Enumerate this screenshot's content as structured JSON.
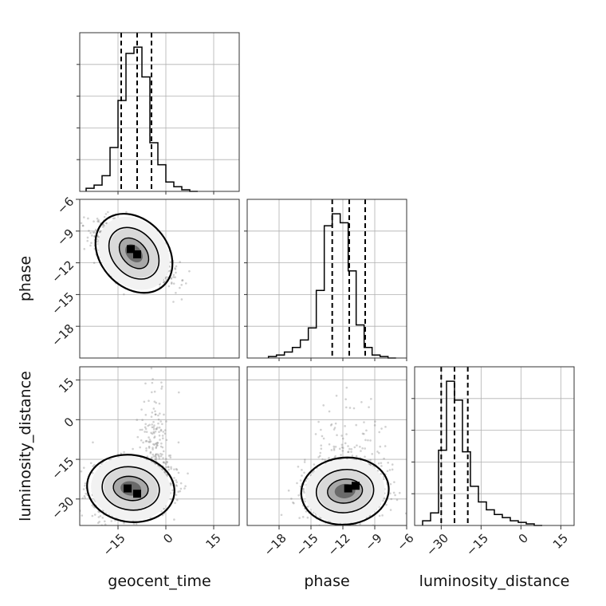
{
  "chart_data": {
    "type": "corner",
    "parameters": [
      "geocent_time",
      "phase",
      "luminosity_distance"
    ],
    "axis_labels": {
      "geocent_time": "geocent_time",
      "phase": "phase",
      "luminosity_distance": "luminosity_distance"
    },
    "ranges": {
      "geocent_time": [
        -27,
        23
      ],
      "phase": [
        -21,
        -6
      ],
      "luminosity_distance": [
        -40,
        20
      ]
    },
    "ticks": {
      "geocent_time": [
        "−15",
        "0",
        "15"
      ],
      "phase": [
        "−18",
        "−15",
        "−12",
        "−9",
        "−6"
      ],
      "luminosity_distance": [
        "−30",
        "−15",
        "0",
        "15"
      ]
    },
    "tick_values": {
      "geocent_time": [
        -15,
        0,
        15
      ],
      "phase": [
        -18,
        -15,
        -12,
        -9,
        -6
      ],
      "luminosity_distance": [
        -30,
        -15,
        0,
        15
      ]
    },
    "histograms": {
      "geocent_time": {
        "bin_edges": [
          -25,
          -22.5,
          -20,
          -17.5,
          -15,
          -12.5,
          -10,
          -7.5,
          -5,
          -2.5,
          0,
          2.5,
          5,
          7.5,
          10
        ],
        "counts": [
          2,
          4,
          10,
          28,
          58,
          88,
          92,
          73,
          31,
          17,
          6,
          3,
          1,
          0
        ]
      },
      "phase": {
        "bin_edges": [
          -19,
          -18.25,
          -17.5,
          -16.75,
          -16,
          -15.25,
          -14.5,
          -13.75,
          -13,
          -12.25,
          -11.5,
          -10.75,
          -10,
          -9.25,
          -8.5,
          -7.75,
          -7
        ],
        "counts": [
          1,
          2,
          4,
          7,
          12,
          20,
          45,
          88,
          96,
          90,
          58,
          22,
          7,
          2,
          1,
          0
        ]
      },
      "luminosity_distance": {
        "bin_edges": [
          -37,
          -34,
          -31,
          -28,
          -25,
          -22,
          -19,
          -16,
          -13,
          -10,
          -7,
          -4,
          -1,
          2,
          5,
          8
        ],
        "counts": [
          3,
          8,
          48,
          92,
          80,
          47,
          25,
          15,
          10,
          7,
          5,
          3,
          2,
          1,
          0
        ]
      }
    },
    "quantiles": {
      "geocent_time": [
        -14,
        -9,
        -4.5
      ],
      "phase": [
        -13,
        -11.4,
        -9.9
      ],
      "luminosity_distance": [
        -30,
        -25,
        -20
      ]
    },
    "pairs": [
      {
        "x": "geocent_time",
        "y": "phase",
        "center": [
          -10,
          -11.1
        ],
        "peak_bins": [
          [
            -11,
            -10.7
          ],
          [
            -9,
            -11.2
          ]
        ]
      },
      {
        "x": "geocent_time",
        "y": "luminosity_distance",
        "center": [
          -11,
          -26
        ],
        "peak_bins": [
          [
            -12,
            -26
          ],
          [
            -9,
            -28
          ]
        ]
      },
      {
        "x": "phase",
        "y": "luminosity_distance",
        "center": [
          -11.8,
          -27
        ],
        "peak_bins": [
          [
            -11.5,
            -26
          ],
          [
            -10.8,
            -25
          ]
        ]
      }
    ],
    "grid": true,
    "colors": {
      "hist": "#000000",
      "points": "#808080",
      "grid": "#b0b0b0"
    }
  }
}
